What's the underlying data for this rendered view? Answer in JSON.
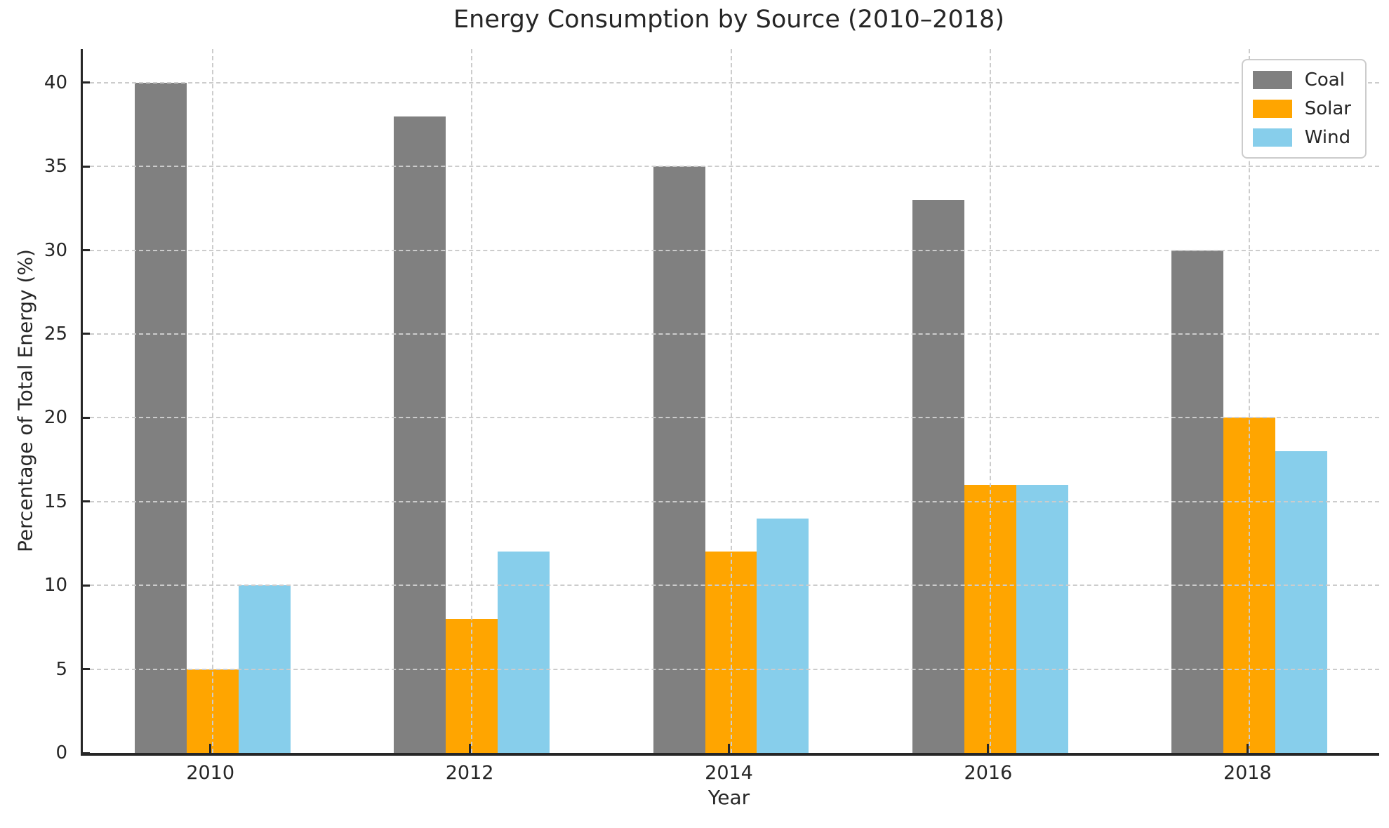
{
  "chart_data": {
    "type": "bar",
    "title": "Energy Consumption by Source (2010–2018)",
    "xlabel": "Year",
    "ylabel": "Percentage of Total Energy (%)",
    "categories": [
      "2010",
      "2012",
      "2014",
      "2016",
      "2018"
    ],
    "series": [
      {
        "name": "Coal",
        "color": "#808080",
        "values": [
          40,
          38,
          35,
          33,
          30
        ]
      },
      {
        "name": "Solar",
        "color": "#FFA500",
        "values": [
          5,
          8,
          12,
          16,
          20
        ]
      },
      {
        "name": "Wind",
        "color": "#87CEEB",
        "values": [
          10,
          12,
          14,
          16,
          18
        ]
      }
    ],
    "ylim": [
      0,
      42
    ],
    "yticks": [
      0,
      5,
      10,
      15,
      20,
      25,
      30,
      35,
      40
    ],
    "grid": "dashed, horizontal and vertical, drawn above bars",
    "legend_position": "upper right",
    "bar_width_fraction": 0.2
  },
  "colors": {
    "text": "#262626",
    "spine": "#262626",
    "grid": "#cccccc",
    "background": "#ffffff"
  }
}
